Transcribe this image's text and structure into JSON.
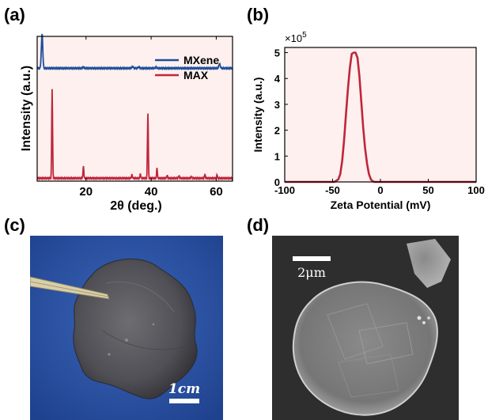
{
  "panels": {
    "a": "(a)",
    "b": "(b)",
    "c": "(c)",
    "d": "(d)"
  },
  "chart_data": [
    {
      "panel": "(a)",
      "type": "line",
      "xlabel": "2θ (deg.)",
      "ylabel": "Intensity (a.u.)",
      "xlim": [
        5,
        65
      ],
      "xticks": [
        20,
        40,
        60
      ],
      "yticks_shown": false,
      "grid": false,
      "legend": "top-right",
      "series": [
        {
          "name": "MXene",
          "color": "#1f4e9a",
          "baseline": 0.78,
          "peaks": [
            {
              "x": 6.5,
              "h": 0.24,
              "w": 0.3
            },
            {
              "x": 19.2,
              "h": 0.006,
              "w": 0.3
            },
            {
              "x": 34.3,
              "h": 0.012,
              "w": 0.3
            },
            {
              "x": 36.2,
              "h": 0.008,
              "w": 0.3
            },
            {
              "x": 41.5,
              "h": 0.008,
              "w": 0.3
            },
            {
              "x": 61.0,
              "h": 0.03,
              "w": 0.3
            }
          ]
        },
        {
          "name": "MAX",
          "color": "#c0253a",
          "baseline": 0.02,
          "peaks": [
            {
              "x": 9.6,
              "h": 0.62,
              "w": 0.18
            },
            {
              "x": 19.2,
              "h": 0.08,
              "w": 0.18
            },
            {
              "x": 34.1,
              "h": 0.025,
              "w": 0.18
            },
            {
              "x": 36.7,
              "h": 0.03,
              "w": 0.18
            },
            {
              "x": 39.0,
              "h": 0.45,
              "w": 0.18
            },
            {
              "x": 41.8,
              "h": 0.07,
              "w": 0.18
            },
            {
              "x": 44.9,
              "h": 0.02,
              "w": 0.18
            },
            {
              "x": 48.5,
              "h": 0.018,
              "w": 0.18
            },
            {
              "x": 52.4,
              "h": 0.012,
              "w": 0.18
            },
            {
              "x": 56.5,
              "h": 0.028,
              "w": 0.18
            },
            {
              "x": 60.2,
              "h": 0.022,
              "w": 0.18
            }
          ]
        }
      ]
    },
    {
      "panel": "(b)",
      "type": "line",
      "xlabel": "Zeta Potential (mV)",
      "ylabel": "Intensity (a.u.)",
      "y_multiplier": "×10",
      "y_exponent": "5",
      "xlim": [
        -100,
        100
      ],
      "ylim": [
        0,
        5.2
      ],
      "xticks": [
        -100,
        -50,
        0,
        50,
        100
      ],
      "yticks": [
        0,
        1,
        2,
        3,
        4,
        5
      ],
      "grid": false,
      "series": [
        {
          "color": "#c0253a",
          "x": [
            -100,
            -48,
            -44,
            -42,
            -40,
            -38,
            -36,
            -34,
            -32,
            -30,
            -28,
            -26,
            -24,
            -22,
            -20,
            -18,
            -16,
            -14,
            -12,
            -10,
            -8,
            -6,
            100
          ],
          "y": [
            0,
            0,
            0.1,
            0.3,
            0.8,
            1.6,
            2.6,
            3.6,
            4.4,
            4.95,
            5.0,
            5.0,
            4.8,
            4.1,
            3.1,
            2.1,
            1.3,
            0.7,
            0.3,
            0.1,
            0.02,
            0,
            0
          ]
        }
      ]
    }
  ],
  "photo_c": {
    "scale_bar_label": "1cm",
    "background_color": "#2f56a6"
  },
  "photo_d": {
    "scale_bar_label": "2μm"
  }
}
